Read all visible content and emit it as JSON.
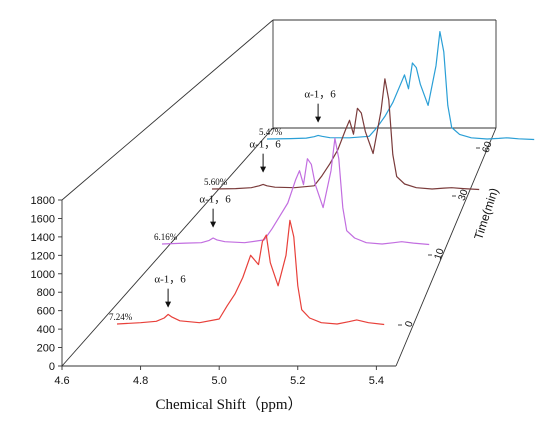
{
  "chart_data": {
    "type": "line",
    "xlabel": "Chemical Shift（ppm）",
    "zlabel": "Time(min)",
    "x_ticks": [
      "4.6",
      "4.8",
      "5.0",
      "5.2",
      "5.4"
    ],
    "x_range": [
      4.6,
      5.45
    ],
    "y_ticks": [
      "0",
      "200",
      "400",
      "600",
      "800",
      "1000",
      "1200",
      "1400",
      "1600",
      "1800"
    ],
    "y_range": [
      0,
      1800
    ],
    "z_ticks": [
      "0",
      "10",
      "30",
      "60"
    ],
    "grid": false,
    "series": [
      {
        "time": "0",
        "color": "#e8403a",
        "annotation": "α-1，6",
        "percent": "7.24%",
        "arrow_x": 4.87,
        "x": [
          4.74,
          4.8,
          4.84,
          4.86,
          4.87,
          4.88,
          4.9,
          4.95,
          5.0,
          5.02,
          5.04,
          5.06,
          5.08,
          5.1,
          5.11,
          5.12,
          5.13,
          5.15,
          5.17,
          5.18,
          5.19,
          5.2,
          5.21,
          5.23,
          5.26,
          5.3,
          5.33,
          5.35,
          5.38,
          5.42
        ],
        "values": [
          455,
          470,
          485,
          520,
          560,
          530,
          490,
          470,
          510,
          650,
          780,
          960,
          1200,
          1100,
          1350,
          1420,
          1120,
          870,
          1200,
          1580,
          1400,
          870,
          610,
          520,
          470,
          455,
          480,
          500,
          470,
          450
        ]
      },
      {
        "time": "10",
        "color": "#c26ee0",
        "annotation": "α-1，6",
        "percent": "6.16%",
        "arrow_x": 4.87,
        "x": [
          4.74,
          4.8,
          4.84,
          4.86,
          4.87,
          4.88,
          4.9,
          4.95,
          5.0,
          5.02,
          5.04,
          5.06,
          5.08,
          5.09,
          5.1,
          5.11,
          5.12,
          5.13,
          5.15,
          5.17,
          5.18,
          5.19,
          5.2,
          5.21,
          5.23,
          5.26,
          5.3,
          5.33,
          5.35,
          5.38,
          5.42
        ],
        "values": [
          455,
          465,
          470,
          495,
          520,
          500,
          480,
          470,
          500,
          620,
          760,
          900,
          1150,
          1250,
          1100,
          1380,
          1320,
          1100,
          850,
          1250,
          1600,
          1380,
          850,
          600,
          520,
          470,
          455,
          470,
          480,
          465,
          450
        ]
      },
      {
        "time": "30",
        "color": "#7a3b3b",
        "annotation": "α-1，6",
        "percent": "5.60%",
        "arrow_x": 4.87,
        "x": [
          4.74,
          4.8,
          4.84,
          4.86,
          4.87,
          4.88,
          4.9,
          4.95,
          5.0,
          5.02,
          5.04,
          5.06,
          5.08,
          5.09,
          5.1,
          5.11,
          5.12,
          5.13,
          5.15,
          5.17,
          5.18,
          5.19,
          5.2,
          5.21,
          5.23,
          5.26,
          5.3,
          5.33,
          5.35,
          5.38,
          5.42
        ],
        "values": [
          455,
          460,
          470,
          490,
          505,
          490,
          475,
          470,
          490,
          600,
          730,
          880,
          1100,
          1200,
          1050,
          1330,
          1280,
          1080,
          840,
          1300,
          1650,
          1420,
          830,
          590,
          510,
          470,
          455,
          465,
          470,
          460,
          450
        ]
      },
      {
        "time": "60",
        "color": "#2a9fd6",
        "annotation": "α-1，6",
        "percent": "5.47%",
        "arrow_x": 4.87,
        "x": [
          4.74,
          4.8,
          4.84,
          4.86,
          4.87,
          4.88,
          4.9,
          4.95,
          5.0,
          5.02,
          5.04,
          5.06,
          5.08,
          5.09,
          5.1,
          5.11,
          5.12,
          5.13,
          5.15,
          5.17,
          5.18,
          5.19,
          5.2,
          5.21,
          5.23,
          5.26,
          5.3,
          5.33,
          5.35,
          5.38,
          5.42
        ],
        "values": [
          455,
          460,
          465,
          480,
          495,
          485,
          470,
          468,
          485,
          580,
          700,
          850,
          1050,
          1150,
          1000,
          1280,
          1230,
          1050,
          820,
          1250,
          1620,
          1400,
          820,
          580,
          505,
          468,
          455,
          462,
          468,
          458,
          450
        ]
      }
    ]
  }
}
